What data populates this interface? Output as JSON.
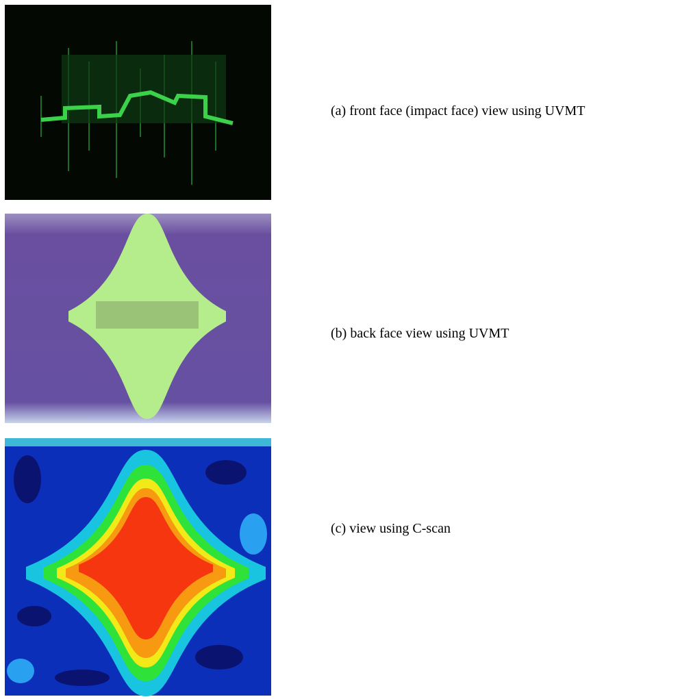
{
  "panels": [
    {
      "caption": "(a) front face (impact face) view using UVMT"
    },
    {
      "caption": "(b) back face view using UVMT"
    },
    {
      "caption": "(c) view using C-scan"
    }
  ]
}
